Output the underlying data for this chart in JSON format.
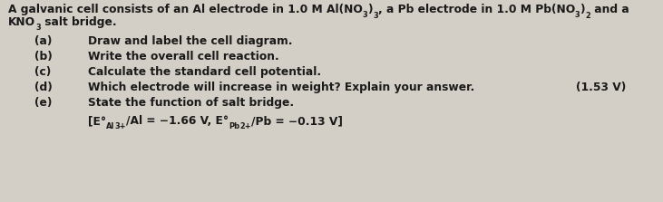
{
  "bg_color": "#d4cfc6",
  "text_color": "#1a1a1a",
  "fig_width": 7.31,
  "fig_height": 2.23,
  "dpi": 100,
  "font_size": 8.8,
  "font_family": "Arial",
  "items": [
    [
      "(a)",
      "Draw and label the cell diagram."
    ],
    [
      "(b)",
      "Write the overall cell reaction."
    ],
    [
      "(c)",
      "Calculate the standard cell potential."
    ],
    [
      "(d)",
      "Which electrode will increase in weight? Explain your answer."
    ],
    [
      "(e)",
      "State the function of salt bridge."
    ]
  ],
  "answer": "(1.53 V)",
  "title1_pre": "A galvanic cell consists of an Al electrode in 1.0 M Al(NO",
  "title1_sub1": "3",
  "title1_mid": ")",
  "title1_sup1": "3",
  "title1_cont": ", a Pb electrode in 1.0 M Pb(NO",
  "title1_sub2": "3",
  "title1_mid2": ")",
  "title1_sup2": "2",
  "title1_end": " and a",
  "title2_pre": "KNO",
  "title2_sub": "3",
  "title2_post": " salt bridge.",
  "foot_bracket": "[E°",
  "foot_sub1": "Al",
  "foot_sup1": "3+",
  "foot_mid": "/Al = −1.66 V, E°",
  "foot_sub2": "Pb",
  "foot_sup2": "2+",
  "foot_end": "/Pb = −0.13 V]"
}
